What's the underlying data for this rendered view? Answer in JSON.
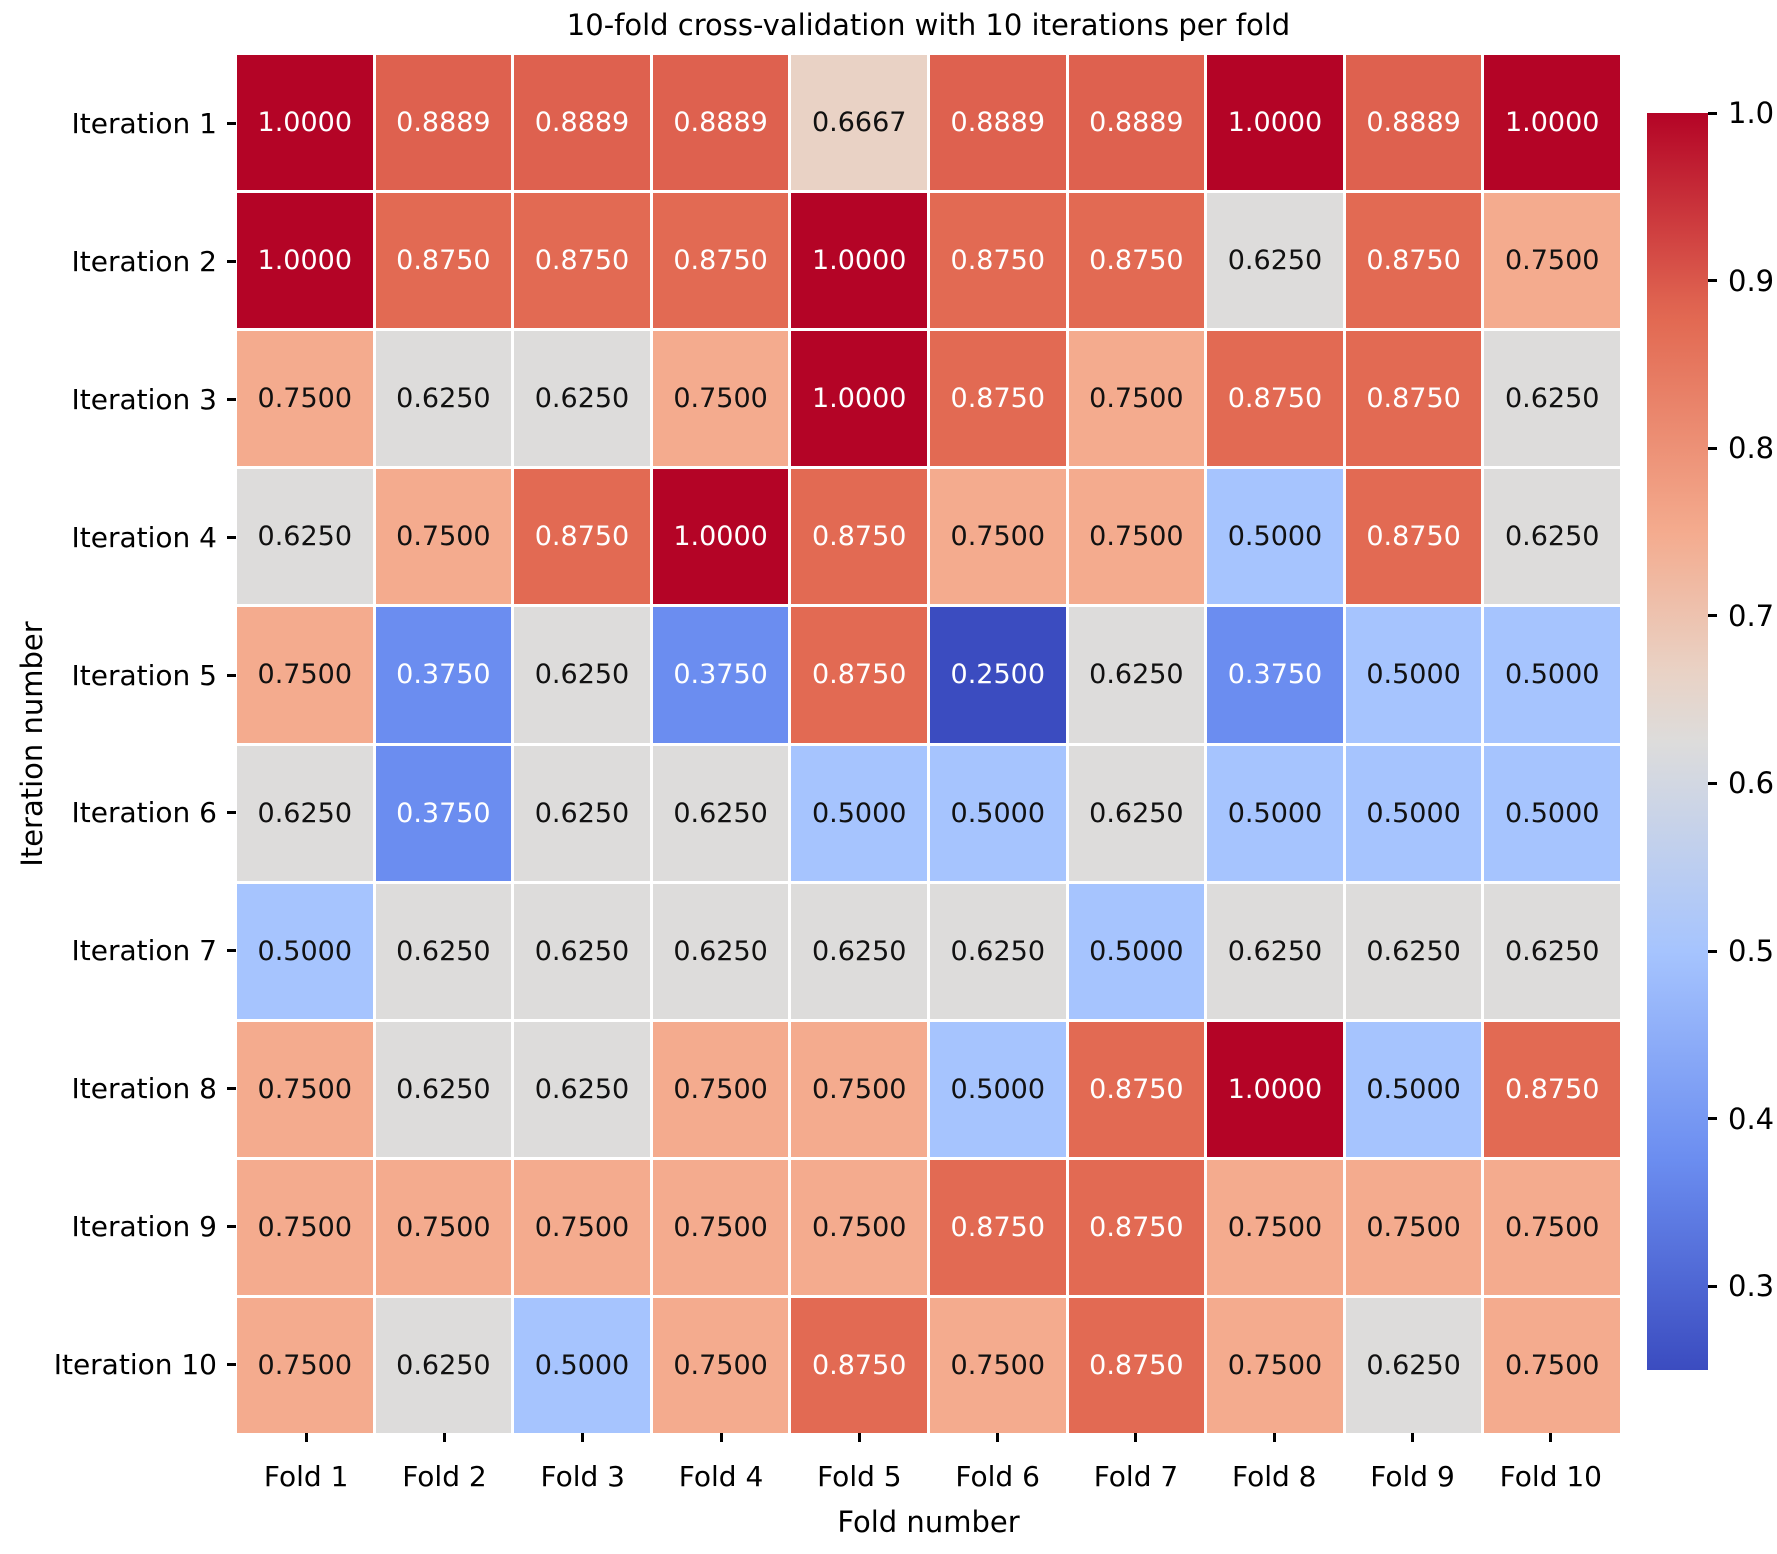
{
  "chart_data": {
    "type": "heatmap",
    "title": "10-fold cross-validation with 10 iterations per fold",
    "xlabel": "Fold number",
    "ylabel": "Iteration number",
    "x_categories": [
      "Fold 1",
      "Fold 2",
      "Fold 3",
      "Fold 4",
      "Fold 5",
      "Fold 6",
      "Fold 7",
      "Fold 8",
      "Fold 9",
      "Fold 10"
    ],
    "y_categories": [
      "Iteration 1",
      "Iteration 2",
      "Iteration 3",
      "Iteration 4",
      "Iteration 5",
      "Iteration 6",
      "Iteration 7",
      "Iteration 8",
      "Iteration 9",
      "Iteration 10"
    ],
    "values": [
      [
        1.0,
        0.8889,
        0.8889,
        0.8889,
        0.6667,
        0.8889,
        0.8889,
        1.0,
        0.8889,
        1.0
      ],
      [
        1.0,
        0.875,
        0.875,
        0.875,
        1.0,
        0.875,
        0.875,
        0.625,
        0.875,
        0.75
      ],
      [
        0.75,
        0.625,
        0.625,
        0.75,
        1.0,
        0.875,
        0.75,
        0.875,
        0.875,
        0.625
      ],
      [
        0.625,
        0.75,
        0.875,
        1.0,
        0.875,
        0.75,
        0.75,
        0.5,
        0.875,
        0.625
      ],
      [
        0.75,
        0.375,
        0.625,
        0.375,
        0.875,
        0.25,
        0.625,
        0.375,
        0.5,
        0.5
      ],
      [
        0.625,
        0.375,
        0.625,
        0.625,
        0.5,
        0.5,
        0.625,
        0.5,
        0.5,
        0.5
      ],
      [
        0.5,
        0.625,
        0.625,
        0.625,
        0.625,
        0.625,
        0.5,
        0.625,
        0.625,
        0.625
      ],
      [
        0.75,
        0.625,
        0.625,
        0.75,
        0.75,
        0.5,
        0.875,
        1.0,
        0.5,
        0.875
      ],
      [
        0.75,
        0.75,
        0.75,
        0.75,
        0.75,
        0.875,
        0.875,
        0.75,
        0.75,
        0.75
      ],
      [
        0.75,
        0.625,
        0.5,
        0.75,
        0.875,
        0.75,
        0.875,
        0.75,
        0.625,
        0.75
      ]
    ],
    "value_decimals": 4,
    "colormap": "coolwarm",
    "vmin": 0.25,
    "vmax": 1.0,
    "colorbar_ticks": [
      1.0,
      0.9,
      0.8,
      0.7,
      0.6,
      0.5,
      0.4,
      0.3
    ],
    "colorbar_tick_decimals": 1,
    "colormap_anchors": [
      {
        "value": 0.25,
        "color": "#3b4cc0"
      },
      {
        "value": 0.375,
        "color": "#6b8df0"
      },
      {
        "value": 0.5,
        "color": "#a6c4fe"
      },
      {
        "value": 0.625,
        "color": "#dddcdb"
      },
      {
        "value": 0.6667,
        "color": "#e9d2c5"
      },
      {
        "value": 0.75,
        "color": "#f4ab8e"
      },
      {
        "value": 0.875,
        "color": "#e26a53"
      },
      {
        "value": 0.8889,
        "color": "#de614f"
      },
      {
        "value": 1.0,
        "color": "#b40426"
      }
    ],
    "annotation_text_dark": "#111111",
    "annotation_text_light": "#ffffff",
    "grid_line_color": "#ffffff",
    "legend_position": "right-colorbar",
    "grid": "off"
  }
}
